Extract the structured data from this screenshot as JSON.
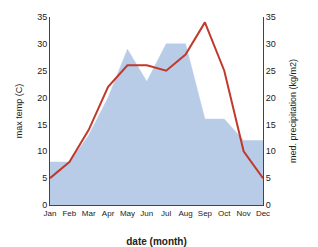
{
  "chart_data": {
    "type": "line",
    "xlabel": "date (month)",
    "ylabel": "max temp (C)",
    "y2label": "med. precipitation (kg/m2)",
    "categories": [
      "Jan",
      "Feb",
      "Mar",
      "Apr",
      "May",
      "Jun",
      "Jul",
      "Aug",
      "Sep",
      "Oct",
      "Nov",
      "Dec"
    ],
    "series": [
      {
        "type": "area",
        "color": "#b8cce8",
        "values": [
          8,
          8,
          13,
          20,
          29,
          23,
          30,
          30,
          16,
          16,
          12,
          12
        ]
      },
      {
        "type": "line",
        "axis": "y2",
        "color": "#c0392b",
        "values": [
          5,
          8,
          14,
          22,
          26,
          26,
          25,
          28,
          34,
          25,
          10,
          5
        ]
      }
    ],
    "ylim": [
      0,
      35
    ],
    "yticks": [
      0,
      5,
      10,
      15,
      20,
      25,
      30,
      35
    ],
    "y2lim": [
      0,
      35
    ],
    "y2ticks": [
      0,
      5,
      10,
      15,
      20,
      25,
      30,
      35
    ],
    "grid": false
  }
}
